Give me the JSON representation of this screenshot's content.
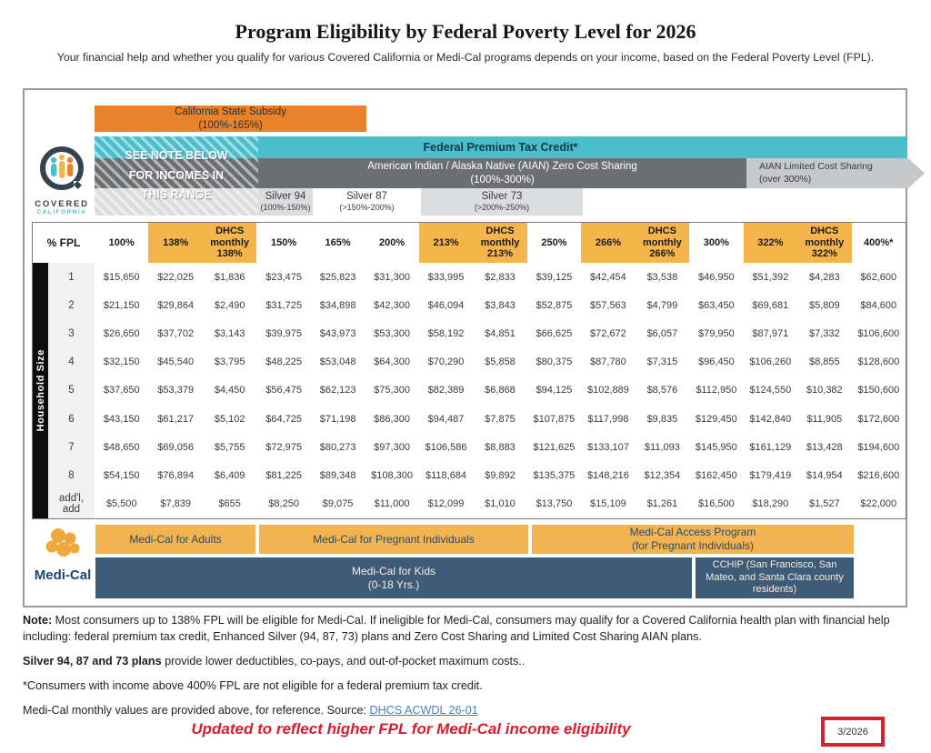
{
  "page": {
    "title": "Program Eligibility by Federal Poverty Level for 2026",
    "subtitle": "Your financial help and whether you qualify for various Covered California or Medi-Cal programs depends on your income, based on the Federal Poverty Level (FPL)."
  },
  "logos": {
    "covered_line1": "COVERED",
    "covered_line2": "CALIFORNIA",
    "medical_wordmark": "Medi-Cal"
  },
  "bands": {
    "state_subsidy": "California State Subsidy\n(100%-165%)",
    "see_note": "SEE NOTE BELOW\nFOR INCOMES IN\nTHIS RANGE",
    "federal_ptc": "Federal Premium Tax Credit*",
    "aian_zero": "American Indian / Alaska Native (AIAN) Zero Cost Sharing\n(100%-300%)",
    "aian_limited": "AIAN Limited Cost Sharing\n(over 300%)",
    "silver": [
      {
        "name": "Silver 94",
        "range": "(100%-150%)"
      },
      {
        "name": "Silver 87",
        "range": "(>150%-200%)"
      },
      {
        "name": "Silver 73",
        "range": "(>200%-250%)"
      }
    ]
  },
  "table": {
    "corner_label": "% FPL",
    "row_axis": "Household Size",
    "columns": [
      {
        "label": "100%",
        "highlight": false
      },
      {
        "label": "138%",
        "highlight": true
      },
      {
        "label": "DHCS\nmonthly\n138%",
        "highlight": true
      },
      {
        "label": "150%",
        "highlight": false
      },
      {
        "label": "165%",
        "highlight": false
      },
      {
        "label": "200%",
        "highlight": false
      },
      {
        "label": "213%",
        "highlight": true
      },
      {
        "label": "DHCS\nmonthly\n213%",
        "highlight": true
      },
      {
        "label": "250%",
        "highlight": false
      },
      {
        "label": "266%",
        "highlight": true
      },
      {
        "label": "DHCS\nmonthly\n266%",
        "highlight": true
      },
      {
        "label": "300%",
        "highlight": false
      },
      {
        "label": "322%",
        "highlight": true
      },
      {
        "label": "DHCS\nmonthly\n322%",
        "highlight": true
      },
      {
        "label": "400%*",
        "highlight": false
      }
    ],
    "rows": [
      {
        "label": "1",
        "values": [
          "$15,650",
          "$22,025",
          "$1,836",
          "$23,475",
          "$25,823",
          "$31,300",
          "$33,995",
          "$2,833",
          "$39,125",
          "$42,454",
          "$3,538",
          "$46,950",
          "$51,392",
          "$4,283",
          "$62,600"
        ]
      },
      {
        "label": "2",
        "values": [
          "$21,150",
          "$29,864",
          "$2,490",
          "$31,725",
          "$34,898",
          "$42,300",
          "$46,094",
          "$3,843",
          "$52,875",
          "$57,563",
          "$4,799",
          "$63,450",
          "$69,681",
          "$5,809",
          "$84,600"
        ]
      },
      {
        "label": "3",
        "values": [
          "$26,650",
          "$37,702",
          "$3,143",
          "$39,975",
          "$43,973",
          "$53,300",
          "$58,192",
          "$4,851",
          "$66,625",
          "$72,672",
          "$6,057",
          "$79,950",
          "$87,971",
          "$7,332",
          "$106,600"
        ]
      },
      {
        "label": "4",
        "values": [
          "$32,150",
          "$45,540",
          "$3,795",
          "$48,225",
          "$53,048",
          "$64,300",
          "$70,290",
          "$5,858",
          "$80,375",
          "$87,780",
          "$7,315",
          "$96,450",
          "$106,260",
          "$8,855",
          "$128,600"
        ]
      },
      {
        "label": "5",
        "values": [
          "$37,650",
          "$53,379",
          "$4,450",
          "$56,475",
          "$62,123",
          "$75,300",
          "$82,389",
          "$6,868",
          "$94,125",
          "$102,889",
          "$8,576",
          "$112,950",
          "$124,550",
          "$10,382",
          "$150,600"
        ]
      },
      {
        "label": "6",
        "values": [
          "$43,150",
          "$61,217",
          "$5,102",
          "$64,725",
          "$71,198",
          "$86,300",
          "$94,487",
          "$7,875",
          "$107,875",
          "$117,998",
          "$9,835",
          "$129,450",
          "$142,840",
          "$11,905",
          "$172,600"
        ]
      },
      {
        "label": "7",
        "values": [
          "$48,650",
          "$69,056",
          "$5,755",
          "$72,975",
          "$80,273",
          "$97,300",
          "$106,586",
          "$8,883",
          "$121,625",
          "$133,107",
          "$11,093",
          "$145,950",
          "$161,129",
          "$13,428",
          "$194,600"
        ]
      },
      {
        "label": "8",
        "values": [
          "$54,150",
          "$76,894",
          "$6,409",
          "$81,225",
          "$89,348",
          "$108,300",
          "$118,684",
          "$9,892",
          "$135,375",
          "$148,216",
          "$12,354",
          "$162,450",
          "$179,419",
          "$14,954",
          "$216,600"
        ]
      },
      {
        "label": "add'l,\nadd",
        "values": [
          "$5,500",
          "$7,839",
          "$655",
          "$8,250",
          "$9,075",
          "$11,000",
          "$12,099",
          "$1,010",
          "$13,750",
          "$15,109",
          "$1,261",
          "$16,500",
          "$18,290",
          "$1,527",
          "$22,000"
        ]
      }
    ]
  },
  "medical": {
    "adults": "Medi-Cal for Adults",
    "pregnant": "Medi-Cal for Pregnant Individuals",
    "access": "Medi-Cal Access Program\n(for Pregnant Individuals)",
    "kids": "Medi-Cal for Kids\n(0-18 Yrs.)",
    "cchip": "CCHIP (San Francisco, San Mateo, and Santa Clara county residents)"
  },
  "footnotes": {
    "note_bold": "Note:",
    "note_rest": " Most consumers up to 138% FPL will be eligible for Medi-Cal. If ineligible for Medi-Cal, consumers may qualify for a Covered California health plan with financial help including: federal premium tax credit, Enhanced Silver (94, 87, 73) plans and Zero Cost Sharing and Limited Cost Sharing AIAN plans.",
    "silver_bold": "Silver 94, 87 and 73 plans",
    "silver_rest": " provide lower deductibles, co-pays, and out-of-pocket maximum costs..",
    "asterisk": "*Consumers with income above 400% FPL are not eligible for a federal premium tax credit.",
    "source_text": "Medi-Cal monthly values are provided above, for reference. Source: ",
    "source_link": "DHCS ACWDL 26-01"
  },
  "update_note": "Updated to reflect higher FPL for Medi-Cal income eligibility",
  "version": "3/2026",
  "colors": {
    "orange": "#E8822B",
    "teal": "#4BBECC",
    "dark_gray": "#6D6E71",
    "light_gray": "#DCDDDE",
    "header_highlight": "#F5B54A",
    "medical_orange": "#F2B351",
    "medical_blue": "#3E5C77",
    "alert_red": "#E01A2B"
  }
}
